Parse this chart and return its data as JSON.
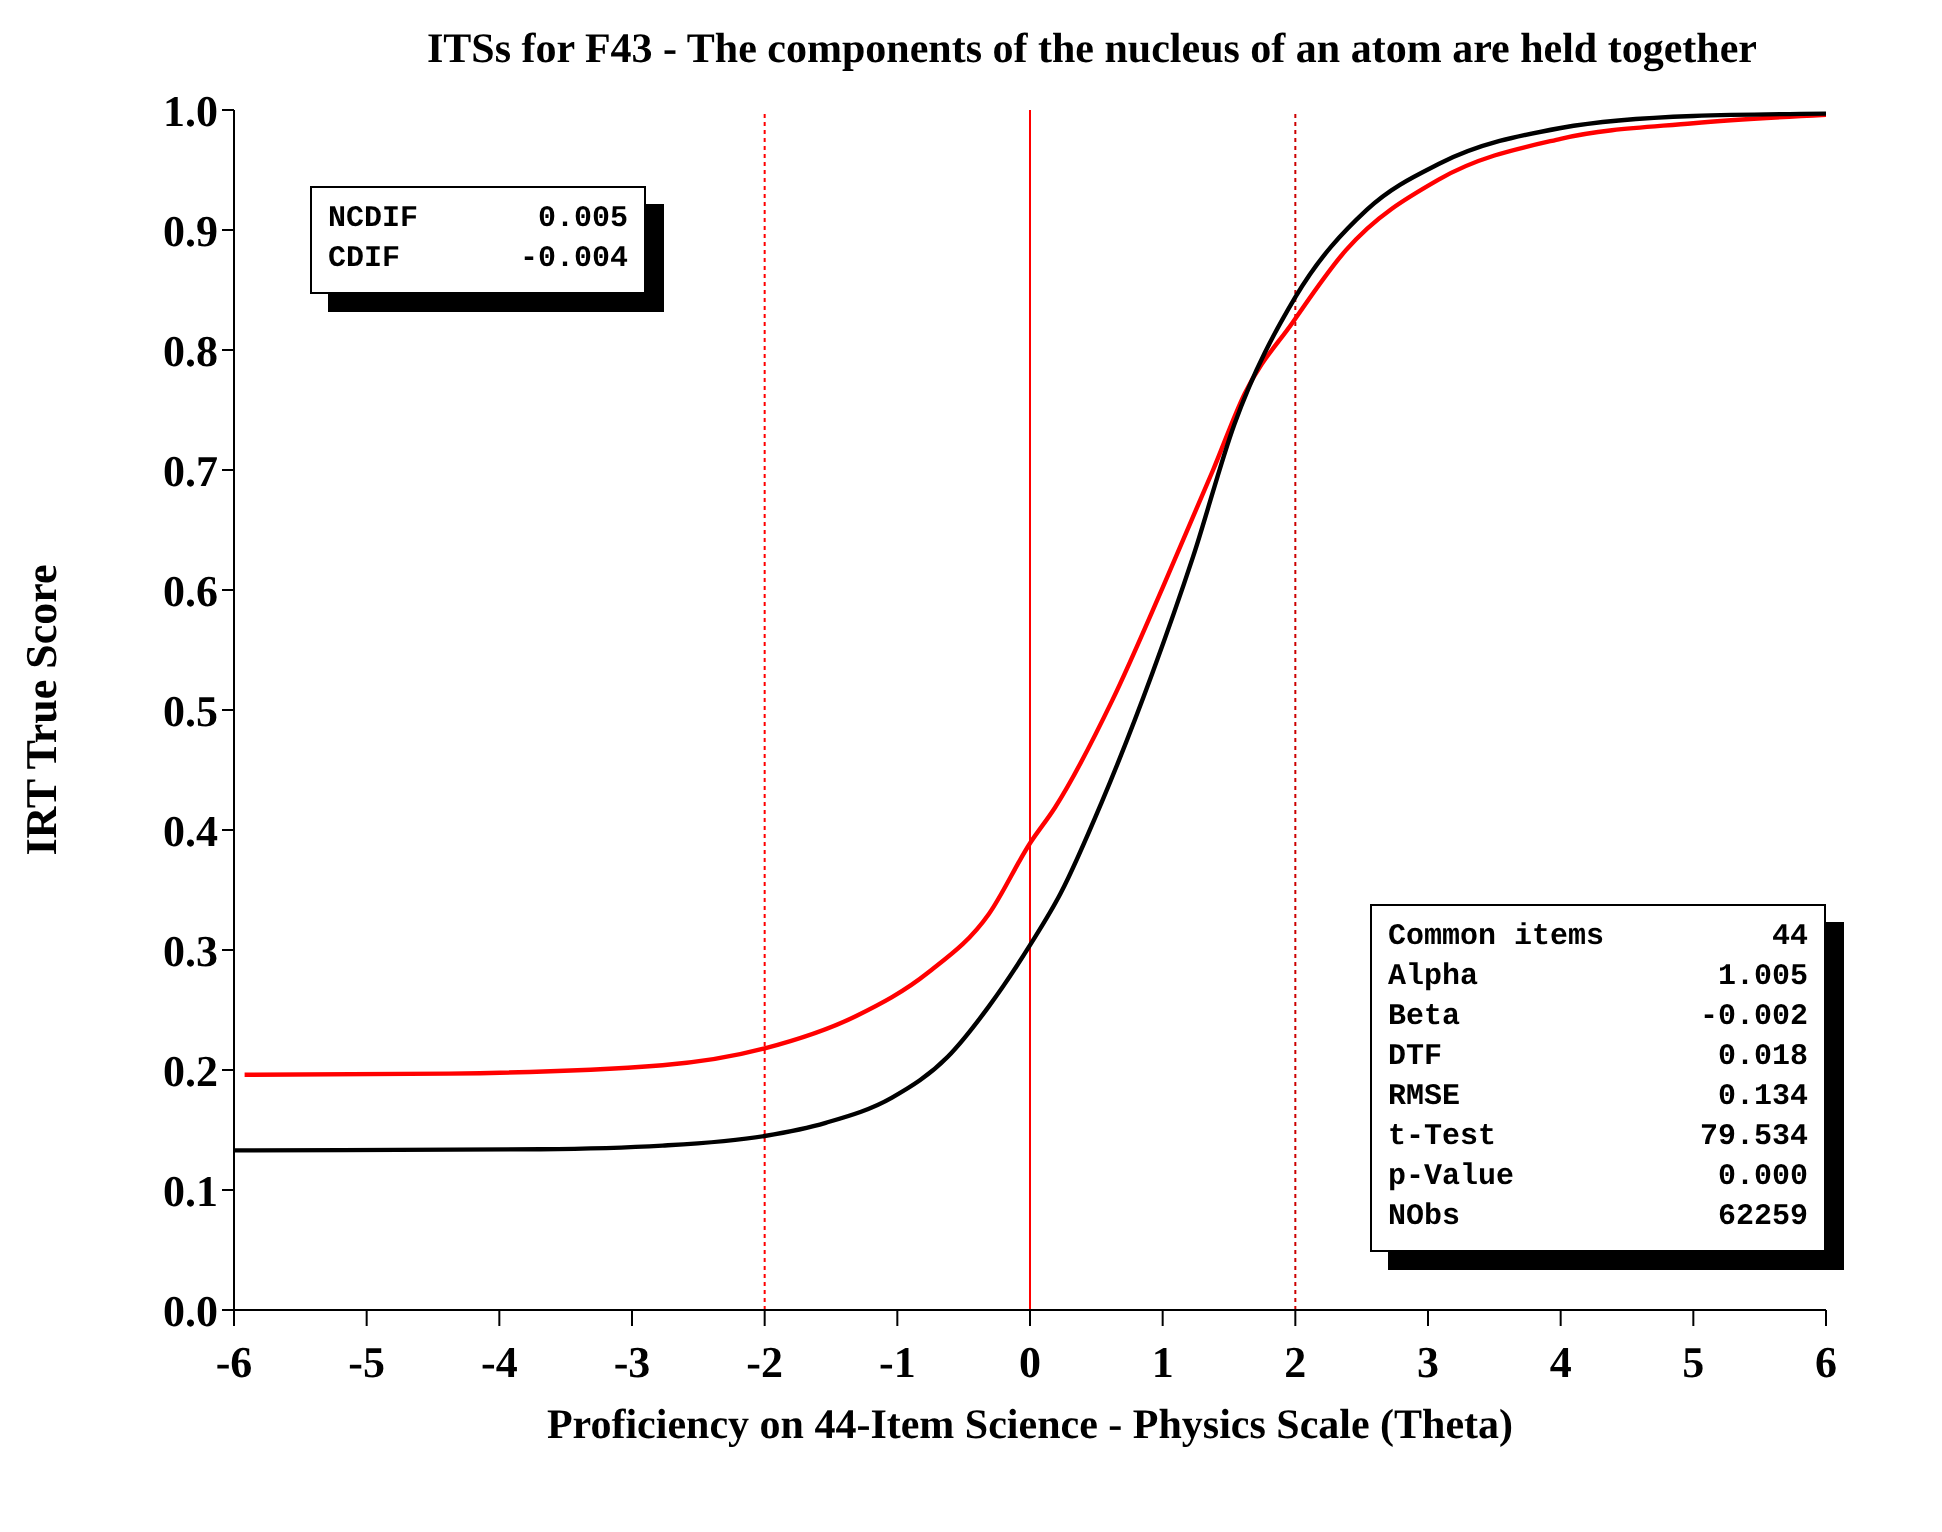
{
  "chart_data": {
    "type": "line",
    "title": "ITSs for F43 - The components of the nucleus of an atom are held together",
    "xlabel": "Proficiency on 44-Item Science - Physics Scale (Theta)",
    "ylabel": "IRT True Score",
    "xlim": [
      -6,
      6
    ],
    "xticks": [
      -6,
      -5,
      -4,
      -3,
      -2,
      -1,
      0,
      1,
      2,
      3,
      4,
      5,
      6
    ],
    "ylim": [
      0,
      1
    ],
    "yticks": [
      {
        "value": 0,
        "label": "0.0"
      },
      0.1,
      0.2,
      0.3,
      0.4,
      0.5,
      0.6,
      0.7,
      0.8,
      0.9,
      {
        "value": 1,
        "label": "1.0"
      }
    ],
    "grid": false,
    "legend": false,
    "marker": "none",
    "line_style": "solid",
    "series": [
      {
        "color": "#ff0000",
        "x": [
          -5.92,
          -4.38,
          -2.77,
          -2,
          -1.31,
          -0.77,
          -0.31,
          0,
          0.19,
          0.62,
          1.0,
          1.38,
          1.62,
          1.98,
          2.38,
          3.08,
          4.0,
          5.0,
          6.0
        ],
        "values": [
          0.196,
          0.197,
          0.204,
          0.218,
          0.245,
          0.281,
          0.33,
          0.389,
          0.419,
          0.508,
          0.602,
          0.7,
          0.764,
          0.823,
          0.883,
          0.942,
          0.976,
          0.989,
          0.996
        ]
      },
      {
        "color": "#000000",
        "x": [
          -6,
          -3.69,
          -2.77,
          -2,
          -1.54,
          -1.04,
          -0.62,
          -0.31,
          0,
          0.23,
          0.54,
          0.92,
          1.23,
          1.54,
          2.0,
          2.54,
          3.08,
          4.0,
          5.0,
          6.0
        ],
        "values": [
          0.133,
          0.134,
          0.137,
          0.145,
          0.156,
          0.177,
          0.211,
          0.253,
          0.304,
          0.347,
          0.423,
          0.53,
          0.628,
          0.738,
          0.844,
          0.917,
          0.955,
          0.985,
          0.995,
          0.997
        ]
      }
    ],
    "ref_lines": [
      {
        "axis": "x",
        "value": -2,
        "color": "#ff0000",
        "line_style": "dotted"
      },
      {
        "axis": "x",
        "value": 0,
        "color": "#ff0000",
        "line_style": "solid"
      },
      {
        "axis": "x",
        "value": 2,
        "color": "#cc0000",
        "line_style": "dotted"
      }
    ],
    "annotations": [
      "NCDIF  0.005\nCDIF  -0.004",
      "Common items  44\nAlpha  1.005\nBeta  -0.002\nDTF  0.018\nRMSE  0.134\nt-Test  79.534\np-Value  0.000\nNObs  62259"
    ]
  }
}
